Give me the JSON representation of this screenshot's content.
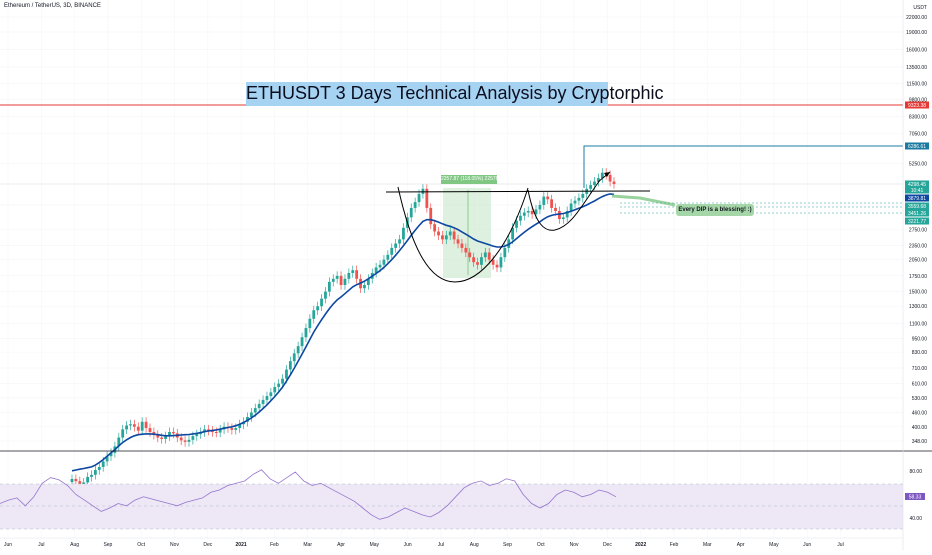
{
  "symbol_header": "Ethereum / TetherUS, 3D, BINANCE",
  "title": "ETHUSDT 3 Days Technical Analysis by Cryptorphic",
  "annotation": "Every DIP is a blessing! :)",
  "measure_label": "2257.87 (118.05%) 225787",
  "colors": {
    "up": "#26a69a",
    "down": "#ef5350",
    "ma": "#0d47a1",
    "resistance": "#e53935",
    "pattern": "#000000",
    "rsi_band": "#ede7f6",
    "rsi_line": "#9575cd",
    "target": "#1a7ba0",
    "projection": "#81c784"
  },
  "chart_data": {
    "type": "candlestick",
    "price_axis": {
      "scale": "log",
      "unit": "USDT",
      "ticks": [
        "22000.00",
        "19000.00",
        "16000.00",
        "13500.00",
        "11500.00",
        "9800.00",
        "8300.00",
        "7050.00",
        "5250.00",
        "3500.00",
        "2750.00",
        "2350.00",
        "2050.00",
        "1750.00",
        "1500.00",
        "1300.00",
        "1100.00",
        "950.00",
        "830.00",
        "710.00",
        "610.00",
        "530.00",
        "460.00",
        "400.00",
        "348.00"
      ],
      "top_label": "USDT"
    },
    "price_labels": [
      {
        "value": "9323.38",
        "color": "#e53935"
      },
      {
        "value": "6286.61",
        "color": "#1a7ba0"
      },
      {
        "value": "4298.45",
        "color": "#26a69a"
      },
      {
        "value": "10:41",
        "color": "#26a69a"
      },
      {
        "value": "3879.81",
        "color": "#0d47a1"
      },
      {
        "value": "3559.68",
        "color": "#26a69a"
      },
      {
        "value": "3451.26",
        "color": "#26a69a"
      },
      {
        "value": "3221.77",
        "color": "#26a69a"
      }
    ],
    "time_axis": [
      "Jun",
      "Jul",
      "Aug",
      "Sep",
      "Oct",
      "Nov",
      "Dec",
      "2021",
      "Feb",
      "Mar",
      "Apr",
      "May",
      "Jun",
      "Jul",
      "Aug",
      "Sep",
      "Oct",
      "Nov",
      "Dec",
      "2022",
      "Feb",
      "Mar",
      "Apr",
      "May",
      "Jun",
      "Jul"
    ],
    "close_series": [
      240,
      235,
      228,
      232,
      245,
      250,
      262,
      270,
      285,
      300,
      310,
      330,
      360,
      390,
      405,
      410,
      400,
      385,
      420,
      395,
      380,
      370,
      360,
      355,
      365,
      380,
      375,
      360,
      350,
      345,
      352,
      365,
      372,
      380,
      390,
      385,
      380,
      378,
      390,
      400,
      395,
      388,
      395,
      410,
      420,
      440,
      460,
      480,
      500,
      520,
      540,
      560,
      590,
      610,
      640,
      700,
      760,
      820,
      880,
      960,
      1050,
      1150,
      1250,
      1300,
      1400,
      1500,
      1650,
      1700,
      1750,
      1600,
      1700,
      1800,
      1850,
      1700,
      1550,
      1600,
      1700,
      1800,
      1900,
      1950,
      2050,
      2150,
      2300,
      2400,
      2500,
      2800,
      3100,
      3400,
      3600,
      3900,
      4100,
      3400,
      2900,
      2700,
      2600,
      2500,
      2600,
      2700,
      2500,
      2400,
      2300,
      2200,
      2100,
      2000,
      1950,
      2100,
      2200,
      2050,
      1950,
      1900,
      2100,
      2300,
      2500,
      2800,
      3000,
      3150,
      3250,
      3300,
      3200,
      3350,
      3500,
      3800,
      3700,
      3400,
      3300,
      3050,
      3100,
      3300,
      3550,
      3650,
      3750,
      3900,
      4100,
      4250,
      4400,
      4550,
      4800,
      4700,
      4400,
      4298
    ],
    "ma_series": [
      260,
      262,
      264,
      266,
      268,
      270,
      275,
      282,
      290,
      300,
      310,
      320,
      332,
      343,
      352,
      360,
      366,
      370,
      372,
      373,
      373,
      372,
      370,
      368,
      366,
      366,
      367,
      368,
      369,
      370,
      371,
      373,
      375,
      378,
      381,
      384,
      386,
      388,
      391,
      394,
      397,
      400,
      404,
      410,
      417,
      426,
      436,
      448,
      462,
      478,
      496,
      516,
      538,
      562,
      590,
      625,
      665,
      710,
      760,
      815,
      875,
      940,
      1010,
      1075,
      1140,
      1205,
      1270,
      1330,
      1385,
      1425,
      1470,
      1520,
      1570,
      1605,
      1630,
      1660,
      1700,
      1745,
      1790,
      1840,
      1900,
      1970,
      2050,
      2140,
      2240,
      2350,
      2470,
      2600,
      2730,
      2860,
      2980,
      3030,
      3030,
      3000,
      2960,
      2910,
      2870,
      2840,
      2800,
      2750,
      2690,
      2630,
      2570,
      2510,
      2460,
      2430,
      2400,
      2370,
      2340,
      2320,
      2320,
      2340,
      2380,
      2440,
      2520,
      2600,
      2680,
      2760,
      2830,
      2900,
      2970,
      3050,
      3120,
      3160,
      3190,
      3200,
      3220,
      3250,
      3290,
      3340,
      3390,
      3440,
      3500,
      3570,
      3640,
      3720,
      3800,
      3860,
      3900,
      3880
    ],
    "rsi": {
      "ticks": [
        "80.00",
        "40.00"
      ],
      "current": "58.33",
      "series": [
        52,
        55,
        57,
        50,
        58,
        70,
        75,
        73,
        68,
        60,
        55,
        50,
        45,
        48,
        52,
        50,
        55,
        58,
        56,
        54,
        52,
        50,
        53,
        55,
        57,
        62,
        64,
        68,
        70,
        72,
        78,
        82,
        74,
        70,
        75,
        80,
        72,
        68,
        70,
        66,
        62,
        58,
        54,
        48,
        42,
        38,
        40,
        44,
        48,
        45,
        42,
        40,
        44,
        50,
        58,
        66,
        70,
        72,
        68,
        70,
        74,
        72,
        60,
        52,
        48,
        52,
        60,
        64,
        62,
        58,
        60,
        64,
        62,
        58
      ]
    },
    "resistance_level": "9323.38",
    "target_level": "6286.61"
  }
}
